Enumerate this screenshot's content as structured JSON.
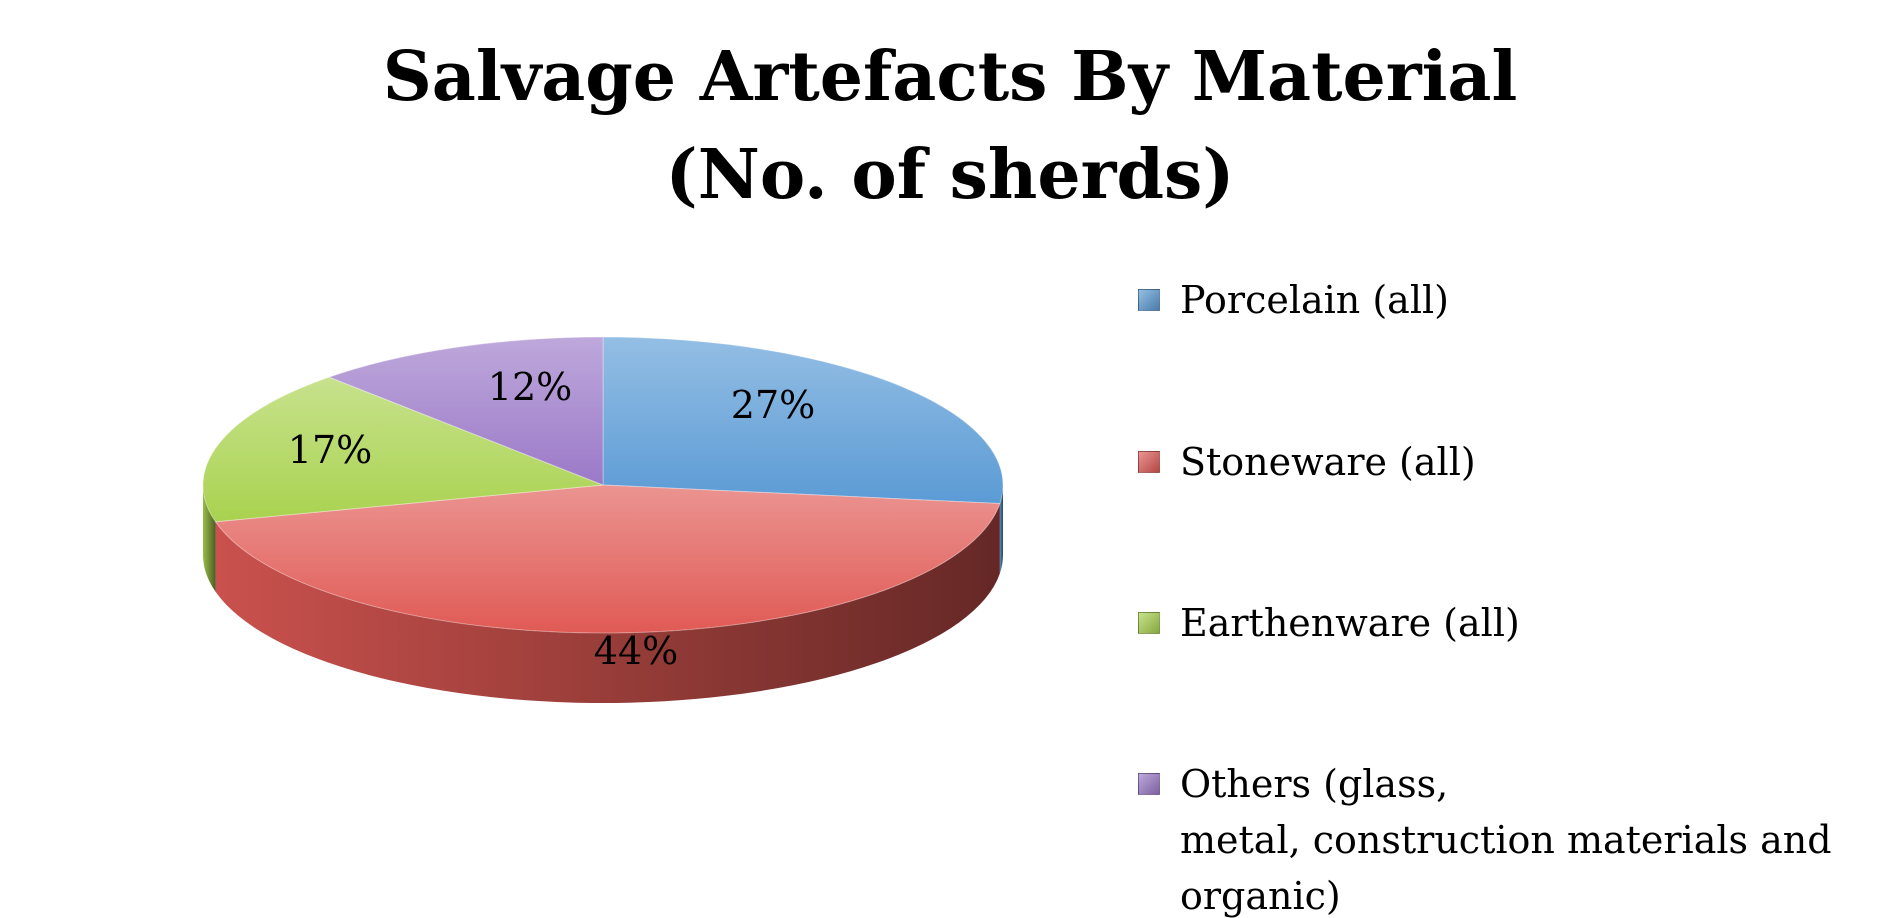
{
  "chart_data": {
    "type": "pie",
    "title": [
      "Salvage Artefacts By Material",
      "(No. of sherds)"
    ],
    "categories": [
      "Porcelain (all)",
      "Stoneware (all)",
      "Earthenware (all)",
      "Others (glass,\nmetal, construction materials and\norganic)"
    ],
    "values": [
      27,
      44,
      17,
      12
    ],
    "data_labels": [
      "27%",
      "44%",
      "17%",
      "12%"
    ],
    "colors": [
      "#5b9bd5",
      "#e05a55",
      "#a9d24f",
      "#9b79c8"
    ],
    "style": "3d",
    "legend_position": "right"
  }
}
